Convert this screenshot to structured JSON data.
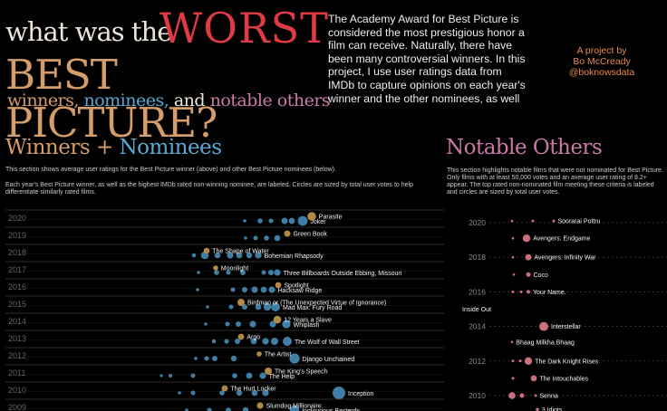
{
  "title": {
    "line1_prefix": "what was the",
    "line1_emph": "WORST",
    "line2": "BEST PICTURE?",
    "line3_winners": "winners,",
    "line3_nominees": "nominees,",
    "line3_and": "and",
    "line3_notable": "notable others"
  },
  "intro": "The Academy Award for Best Picture is considered the most prestigious honor a film can receive. Naturally, there have been many controversial winners. In this project, I use user ratings data from IMDb to capture opinions on each year's winner and the other nominees, as well as highlighting the other popular + well-regarded films that were not",
  "credit": {
    "line1": "A project by",
    "line2": "Bo McCready",
    "line3": "@boknowsdata"
  },
  "section1": {
    "title_a": "Winners",
    "title_plus": "+",
    "title_b": "Nominees",
    "desc1": "This section shows average user ratings for the Best Picture winner (above) and other Best Picture nominees (below).",
    "desc2": "Each year's Best Picture winner, as well as the highest IMDb rated non-winning nominee, are labeled. Circles are sized by total user votes to help differentiate similarly rated films."
  },
  "section2": {
    "title": "Notable Others",
    "desc": "This section highlights notable films that were not nominated for Best Picture. Only films with at least 50,000 votes and an average user rating of 8.2+ appear. The top rated non-nominated film meeting these criteria is labeled and circles are sized by total user votes."
  },
  "colors": {
    "winner": "#b08a42",
    "nominee": "#3f7fa6",
    "notable": "#c9707e",
    "title_red": "#e03a44",
    "title_tan": "#d49d6a",
    "nominee_text": "#5aa8d4",
    "notable_text": "#c97aa6",
    "credit": "#e9894a"
  },
  "chart_data": [
    {
      "type": "scatter",
      "title": "Winners + Nominees",
      "xlabel": "",
      "ylabel": "",
      "grid": true,
      "legend": "none",
      "rows": [
        {
          "year": 2020,
          "ticklabel": "2020",
          "winner": {
            "label": "Parasite",
            "x": 344,
            "r": 4.8
          },
          "nominees": [
            {
              "x": 270,
              "r": 1.8
            },
            {
              "x": 287,
              "r": 2.8
            },
            {
              "x": 299,
              "r": 2.5
            },
            {
              "x": 314,
              "r": 3.5
            },
            {
              "x": 322,
              "r": 3.4
            },
            {
              "x": 334,
              "r": 5.4,
              "label": "Joker"
            }
          ]
        },
        {
          "year": 2019,
          "ticklabel": "2019",
          "winner": {
            "label": "Green Book",
            "x": 317,
            "r": 3.5
          },
          "nominees": [
            {
              "x": 271,
              "r": 1.8
            },
            {
              "x": 282,
              "r": 2.5
            },
            {
              "x": 294,
              "r": 2.8
            },
            {
              "x": 306,
              "r": 3.3
            }
          ]
        },
        {
          "year": 2018,
          "ticklabel": "2018",
          "winner": {
            "label": "The Shape of Water",
            "x": 228,
            "r": 3.3
          },
          "nominees": [
            {
              "x": 214,
              "r": 2.3
            },
            {
              "x": 226,
              "r": 4.3
            },
            {
              "x": 240,
              "r": 3.3
            },
            {
              "x": 254,
              "r": 3.6
            },
            {
              "x": 264,
              "r": 3.3
            },
            {
              "x": 275,
              "r": 3.2
            },
            {
              "x": 285,
              "r": 3.6,
              "label": "Bohemian Rhapsody"
            }
          ]
        },
        {
          "year": 2017,
          "ticklabel": "2017",
          "winner": {
            "label": "Moonlight",
            "x": 238,
            "r": 2.8
          },
          "nominees": [
            {
              "x": 219,
              "r": 1.8
            },
            {
              "x": 239,
              "r": 2.8
            },
            {
              "x": 252,
              "r": 2.5
            },
            {
              "x": 268,
              "r": 3.0
            },
            {
              "x": 291,
              "r": 2.5
            },
            {
              "x": 299,
              "r": 3.0
            },
            {
              "x": 306,
              "r": 3.6,
              "label": "Three Billboards Outside Ebbing, Missouri"
            }
          ]
        },
        {
          "year": 2016,
          "ticklabel": "2016",
          "winner": {
            "label": "Spotlight",
            "x": 307,
            "r": 3.4
          },
          "nominees": [
            {
              "x": 218,
              "r": 1.8
            },
            {
              "x": 257,
              "r": 2.5
            },
            {
              "x": 270,
              "r": 3.0
            },
            {
              "x": 281,
              "r": 3.6
            },
            {
              "x": 291,
              "r": 3.4
            },
            {
              "x": 300,
              "r": 3.6,
              "label": "Hacksaw Ridge"
            }
          ]
        },
        {
          "year": 2015,
          "ticklabel": "2015",
          "winner": {
            "label": "Birdman or (The Unexpected Virtue of Ignorance)",
            "x": 266,
            "r": 4.0
          },
          "nominees": [
            {
              "x": 229,
              "r": 1.8
            },
            {
              "x": 255,
              "r": 2.5
            },
            {
              "x": 270,
              "r": 3.0
            },
            {
              "x": 285,
              "r": 3.4
            },
            {
              "x": 295,
              "r": 4.2
            },
            {
              "x": 304,
              "r": 5.0,
              "label": "Mad Max: Fury Road"
            }
          ]
        },
        {
          "year": 2014,
          "ticklabel": "2014",
          "winner": {
            "label": "12 Years a Slave",
            "x": 306,
            "r": 4.3
          },
          "nominees": [
            {
              "x": 227,
              "r": 1.8
            },
            {
              "x": 251,
              "r": 2.5
            },
            {
              "x": 263,
              "r": 3.0
            },
            {
              "x": 279,
              "r": 3.6
            },
            {
              "x": 301,
              "r": 3.6
            },
            {
              "x": 316,
              "r": 4.6,
              "label": "Whiplash"
            }
          ]
        },
        {
          "year": 2013,
          "ticklabel": "2013",
          "winner": {
            "label": "Argo",
            "x": 266,
            "r": 3.4
          },
          "nominees": [
            {
              "x": 236,
              "r": 2.3
            },
            {
              "x": 250,
              "r": 2.6
            },
            {
              "x": 262,
              "r": 3.0
            },
            {
              "x": 280,
              "r": 3.3
            },
            {
              "x": 293,
              "r": 3.6
            },
            {
              "x": 303,
              "r": 4.0
            },
            {
              "x": 317,
              "r": 5.0,
              "label": "The Wolf of Wall Street"
            }
          ]
        },
        {
          "year": 2012,
          "ticklabel": "2012",
          "winner": {
            "label": "The Artist",
            "x": 286,
            "r": 2.8
          },
          "nominees": [
            {
              "x": 216,
              "r": 1.8
            },
            {
              "x": 228,
              "r": 2.5
            },
            {
              "x": 237,
              "r": 3.0
            },
            {
              "x": 258,
              "r": 3.2
            },
            {
              "x": 325,
              "r": 5.6,
              "label": "Django Unchained"
            }
          ]
        },
        {
          "year": 2011,
          "ticklabel": "2011",
          "winner": {
            "label": "The King's Speech",
            "x": 296,
            "r": 4.0
          },
          "nominees": [
            {
              "x": 178,
              "r": 1.6
            },
            {
              "x": 188,
              "r": 2.0
            },
            {
              "x": 213,
              "r": 2.5
            },
            {
              "x": 259,
              "r": 2.8
            },
            {
              "x": 275,
              "r": 3.4
            },
            {
              "x": 290,
              "r": 3.6,
              "label": "The Help"
            }
          ]
        },
        {
          "year": 2010,
          "ticklabel": "2010",
          "winner": {
            "label": "The Hurt Locker",
            "x": 248,
            "r": 3.4
          },
          "nominees": [
            {
              "x": 198,
              "r": 1.8
            },
            {
              "x": 213,
              "r": 2.5
            },
            {
              "x": 245,
              "r": 2.8
            },
            {
              "x": 264,
              "r": 3.2
            },
            {
              "x": 281,
              "r": 3.4
            },
            {
              "x": 293,
              "r": 3.6
            },
            {
              "x": 374,
              "r": 7.0,
              "label": "Inception"
            }
          ]
        },
        {
          "year": 2009,
          "ticklabel": "2009",
          "winner": {
            "label": "Slumdog Millionaire",
            "x": 287,
            "r": 3.6
          },
          "nominees": [
            {
              "x": 206,
              "r": 1.8
            },
            {
              "x": 231,
              "r": 2.5
            },
            {
              "x": 252,
              "r": 2.8
            },
            {
              "x": 271,
              "r": 3.2
            },
            {
              "x": 325,
              "r": 5.2,
              "label": "Inglourious Basterds"
            }
          ]
        }
      ]
    },
    {
      "type": "scatter",
      "title": "Notable Others",
      "xlabel": "",
      "ylabel": "",
      "grid": true,
      "legend": "none",
      "yticks": [
        {
          "label": "2020",
          "year": 2020
        },
        {
          "label": "2018",
          "year": 2018
        },
        {
          "label": "2016",
          "year": 2016
        },
        {
          "label": "2014",
          "year": 2014
        },
        {
          "label": "2012",
          "year": 2012
        },
        {
          "label": "2010",
          "year": 2010
        }
      ],
      "points": [
        {
          "year": 2020.1,
          "x": 611,
          "r": 1.5,
          "label": "Soorarai Pottru"
        },
        {
          "year": 2020.1,
          "x": 565,
          "r": 1.3
        },
        {
          "year": 2020.1,
          "x": 588,
          "r": 1.5
        },
        {
          "year": 2019.1,
          "x": 581,
          "r": 4.2,
          "label": "Avengers: Endgame"
        },
        {
          "year": 2019.1,
          "x": 566,
          "r": 1.3
        },
        {
          "year": 2018.0,
          "x": 583,
          "r": 3.4,
          "label": "Avengers: Infinity War"
        },
        {
          "year": 2018.0,
          "x": 566,
          "r": 1.3
        },
        {
          "year": 2017.0,
          "x": 583,
          "r": 2.5,
          "label": "Coco"
        },
        {
          "year": 2017.0,
          "x": 567,
          "r": 1.3
        },
        {
          "year": 2016.0,
          "x": 583,
          "r": 2.0,
          "label": "Your Name."
        },
        {
          "year": 2016.0,
          "x": 566,
          "r": 1.5
        },
        {
          "year": 2016.0,
          "x": 575,
          "r": 1.5
        },
        {
          "year": 2015.0,
          "x": 510,
          "r": 0,
          "label": "Inside Out"
        },
        {
          "year": 2014.0,
          "x": 600,
          "r": 5.0,
          "label": "Interstellar"
        },
        {
          "year": 2013.1,
          "x": 565,
          "r": 1.3,
          "label": "Bhaag Milkha Bhaag"
        },
        {
          "year": 2012.0,
          "x": 583,
          "r": 4.2,
          "label": "The Dark Knight Rises"
        },
        {
          "year": 2012.0,
          "x": 566,
          "r": 1.5
        },
        {
          "year": 2012.0,
          "x": 574,
          "r": 1.5
        },
        {
          "year": 2011.0,
          "x": 589,
          "r": 3.4,
          "label": "The Intouchables"
        },
        {
          "year": 2011.0,
          "x": 566,
          "r": 1.5
        },
        {
          "year": 2010.0,
          "x": 591,
          "r": 1.5,
          "label": "Senna"
        },
        {
          "year": 2010.0,
          "x": 565,
          "r": 3.8
        },
        {
          "year": 2010.0,
          "x": 576,
          "r": 2.5
        },
        {
          "year": 2009.2,
          "x": 593,
          "r": 1.8,
          "label": "3 Idiots"
        }
      ]
    }
  ]
}
